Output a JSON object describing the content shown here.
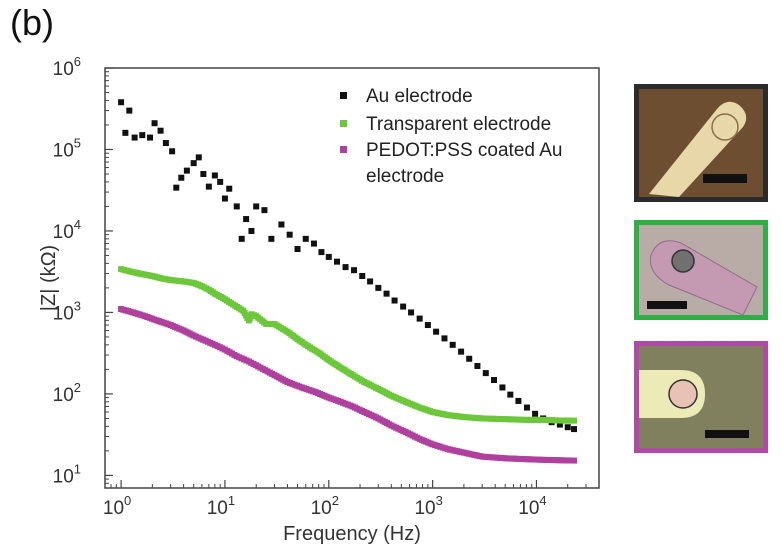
{
  "panel_label": "(b)",
  "colors": {
    "au": "#111111",
    "transparent": "#6cc83a",
    "pedot": "#b0409e",
    "photo_border_au": "#2b2b2b",
    "photo_border_transparent": "#2fae48",
    "photo_border_pedot": "#b04aa6"
  },
  "photos": [
    {
      "icon": "au-electrode-micrograph-icon"
    },
    {
      "icon": "transparent-electrode-micrograph-icon"
    },
    {
      "icon": "pedot-electrode-micrograph-icon"
    }
  ],
  "chart_data": {
    "type": "scatter",
    "x_scale": "log",
    "y_scale": "log",
    "xlabel": "Frequency (Hz)",
    "ylabel": "|Z| (kΩ)",
    "xlim": [
      0.7,
      40000
    ],
    "ylim": [
      7,
      1000000
    ],
    "x_ticks": [
      {
        "base": "10",
        "exp": "0",
        "value": 1
      },
      {
        "base": "10",
        "exp": "1",
        "value": 10
      },
      {
        "base": "10",
        "exp": "2",
        "value": 100
      },
      {
        "base": "10",
        "exp": "3",
        "value": 1000
      },
      {
        "base": "10",
        "exp": "4",
        "value": 10000
      }
    ],
    "y_ticks": [
      {
        "base": "10",
        "exp": "1",
        "value": 10
      },
      {
        "base": "10",
        "exp": "2",
        "value": 100
      },
      {
        "base": "10",
        "exp": "3",
        "value": 1000
      },
      {
        "base": "10",
        "exp": "4",
        "value": 10000
      },
      {
        "base": "10",
        "exp": "5",
        "value": 100000
      },
      {
        "base": "10",
        "exp": "6",
        "value": 1000000
      }
    ],
    "legend_position": "top-right",
    "series": [
      {
        "name": "Au electrode",
        "name_lines": [
          "Au electrode"
        ],
        "marker": "square",
        "points": [
          [
            1.0,
            380000
          ],
          [
            1.1,
            160000
          ],
          [
            1.2,
            300000
          ],
          [
            1.35,
            140000
          ],
          [
            1.6,
            150000
          ],
          [
            1.9,
            140000
          ],
          [
            2.1,
            210000
          ],
          [
            2.4,
            170000
          ],
          [
            2.7,
            120000
          ],
          [
            3.1,
            95000
          ],
          [
            3.4,
            34000
          ],
          [
            3.8,
            45000
          ],
          [
            4.3,
            55000
          ],
          [
            5.0,
            68000
          ],
          [
            5.6,
            80000
          ],
          [
            6.2,
            50000
          ],
          [
            7.0,
            35000
          ],
          [
            8.0,
            48000
          ],
          [
            9.0,
            40000
          ],
          [
            10.0,
            25000
          ],
          [
            11.0,
            33000
          ],
          [
            13.0,
            20000
          ],
          [
            14.5,
            8000
          ],
          [
            16.0,
            14000
          ],
          [
            18.0,
            10000
          ],
          [
            20.0,
            20000
          ],
          [
            24.0,
            18000
          ],
          [
            28.0,
            8000
          ],
          [
            35.0,
            12000
          ],
          [
            42.0,
            9000
          ],
          [
            50.0,
            6000
          ],
          [
            60.0,
            8000
          ],
          [
            72.0,
            7000
          ],
          [
            85.0,
            5500
          ],
          [
            100,
            4800
          ],
          [
            120,
            4200
          ],
          [
            145,
            3600
          ],
          [
            175,
            3300
          ],
          [
            210,
            2800
          ],
          [
            250,
            2400
          ],
          [
            300,
            2000
          ],
          [
            360,
            1700
          ],
          [
            430,
            1400
          ],
          [
            520,
            1180
          ],
          [
            620,
            1000
          ],
          [
            750,
            840
          ],
          [
            900,
            700
          ],
          [
            1080,
            580
          ],
          [
            1300,
            480
          ],
          [
            1560,
            400
          ],
          [
            1880,
            330
          ],
          [
            2250,
            270
          ],
          [
            2700,
            220
          ],
          [
            3250,
            180
          ],
          [
            3900,
            148
          ],
          [
            4700,
            120
          ],
          [
            5600,
            98
          ],
          [
            6700,
            82
          ],
          [
            8100,
            68
          ],
          [
            9700,
            57
          ],
          [
            11600,
            50
          ],
          [
            14000,
            45
          ],
          [
            16800,
            42
          ],
          [
            20000,
            39
          ],
          [
            23000,
            37
          ]
        ]
      },
      {
        "name": "Transparent electrode",
        "name_lines": [
          "Transparent electrode"
        ],
        "marker": "square",
        "points": [
          [
            1.0,
            3400
          ],
          [
            1.2,
            3200
          ],
          [
            1.5,
            3000
          ],
          [
            2.0,
            2800
          ],
          [
            2.5,
            2600
          ],
          [
            3.0,
            2500
          ],
          [
            4.0,
            2400
          ],
          [
            5.0,
            2300
          ],
          [
            6.0,
            2100
          ],
          [
            7.0,
            1900
          ],
          [
            8.0,
            1700
          ],
          [
            10.0,
            1450
          ],
          [
            12.0,
            1250
          ],
          [
            15.0,
            1050
          ],
          [
            17.0,
            800
          ],
          [
            18.0,
            950
          ],
          [
            20.0,
            900
          ],
          [
            25.0,
            720
          ],
          [
            30.0,
            720
          ],
          [
            40.0,
            580
          ],
          [
            50.0,
            470
          ],
          [
            60.0,
            400
          ],
          [
            80.0,
            320
          ],
          [
            100,
            260
          ],
          [
            130,
            210
          ],
          [
            170,
            170
          ],
          [
            220,
            140
          ],
          [
            300,
            115
          ],
          [
            400,
            95
          ],
          [
            550,
            80
          ],
          [
            750,
            68
          ],
          [
            1000,
            60
          ],
          [
            1400,
            55
          ],
          [
            2000,
            52
          ],
          [
            3000,
            50
          ],
          [
            5000,
            49
          ],
          [
            8000,
            48
          ],
          [
            12000,
            48
          ],
          [
            18000,
            47
          ],
          [
            23000,
            47
          ]
        ]
      },
      {
        "name": "PEDOT:PSS coated Au electrode",
        "name_lines": [
          "PEDOT:PSS coated Au",
          "electrode"
        ],
        "marker": "square",
        "points": [
          [
            1.0,
            1100
          ],
          [
            1.3,
            1000
          ],
          [
            1.7,
            900
          ],
          [
            2.2,
            800
          ],
          [
            3.0,
            700
          ],
          [
            4.0,
            600
          ],
          [
            5.0,
            520
          ],
          [
            6.5,
            450
          ],
          [
            8.0,
            400
          ],
          [
            10.0,
            350
          ],
          [
            13.0,
            290
          ],
          [
            17.0,
            250
          ],
          [
            22.0,
            210
          ],
          [
            30.0,
            170
          ],
          [
            40.0,
            140
          ],
          [
            55.0,
            120
          ],
          [
            75.0,
            105
          ],
          [
            100,
            90
          ],
          [
            130,
            80
          ],
          [
            170,
            70
          ],
          [
            220,
            60
          ],
          [
            300,
            50
          ],
          [
            400,
            41
          ],
          [
            550,
            34
          ],
          [
            750,
            28
          ],
          [
            1000,
            24
          ],
          [
            1400,
            21
          ],
          [
            2000,
            19
          ],
          [
            3000,
            17
          ],
          [
            5000,
            16.2
          ],
          [
            8000,
            15.8
          ],
          [
            12000,
            15.5
          ],
          [
            18000,
            15.3
          ],
          [
            23000,
            15.2
          ]
        ]
      }
    ]
  }
}
